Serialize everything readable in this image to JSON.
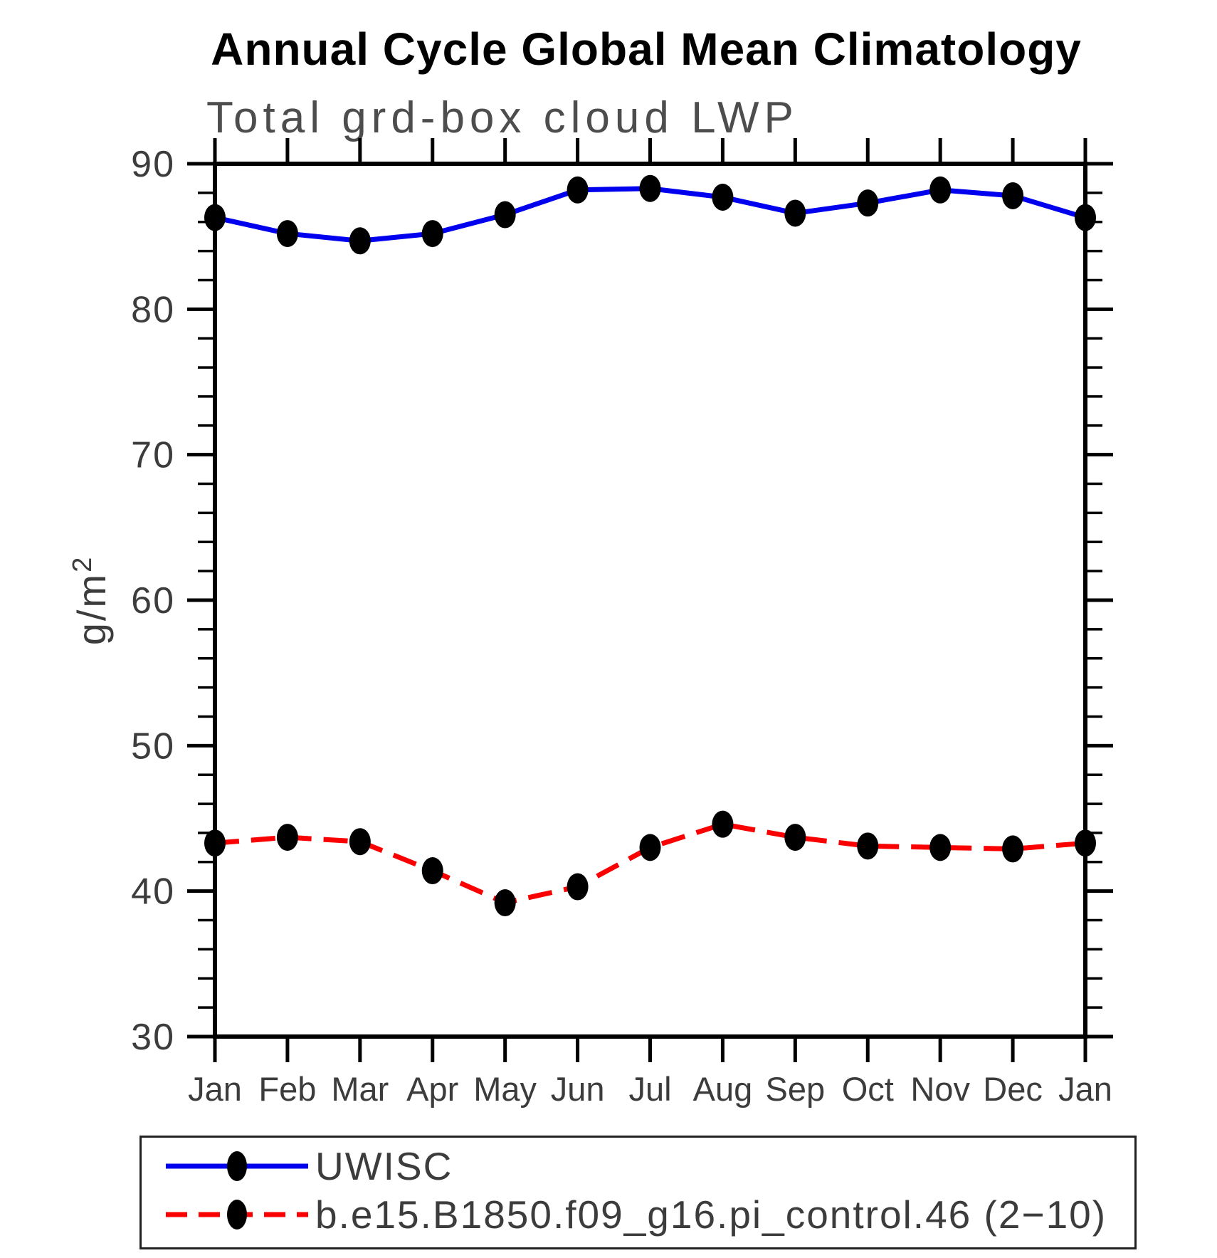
{
  "header": {
    "title": "Annual Cycle Global Mean Climatology",
    "subtitle": "Total grd-box cloud LWP"
  },
  "y_axis": {
    "label_base": "g/m",
    "label_exponent": "2"
  },
  "chart_data": {
    "type": "line",
    "title": "Annual Cycle Global Mean Climatology",
    "subtitle": "Total grd-box cloud LWP",
    "xlabel": "",
    "ylabel": "g/m^2",
    "ylim": [
      30,
      90
    ],
    "yticks_major": [
      30,
      40,
      50,
      60,
      70,
      80,
      90
    ],
    "ytick_minor_step": 2,
    "grid": false,
    "legend_position": "bottom-box",
    "categories": [
      "Jan",
      "Feb",
      "Mar",
      "Apr",
      "May",
      "Jun",
      "Jul",
      "Aug",
      "Sep",
      "Oct",
      "Nov",
      "Dec",
      "Jan"
    ],
    "series": [
      {
        "name": "UWISC",
        "color": "#0000ee",
        "style": "solid",
        "marker": "black-filled-dot",
        "values": [
          86.3,
          85.2,
          84.7,
          85.2,
          86.5,
          88.2,
          88.3,
          87.7,
          86.6,
          87.3,
          88.2,
          87.8,
          86.3
        ]
      },
      {
        "name": "b.e15.B1850.f09_g16.pi_control.46 (2−10)",
        "color": "#fa0000",
        "style": "dashed",
        "marker": "black-filled-dot",
        "values": [
          43.3,
          43.7,
          43.4,
          41.4,
          39.2,
          40.3,
          43.0,
          44.6,
          43.7,
          43.1,
          43.0,
          42.9,
          43.3
        ]
      }
    ],
    "marker_color": "#000000"
  }
}
